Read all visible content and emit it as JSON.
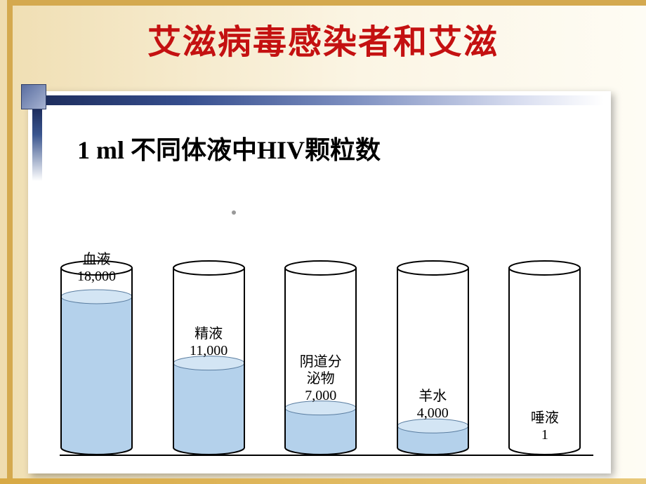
{
  "page_title": "艾滋病毒感染者和艾滋",
  "chart": {
    "title": "1 ml 不同体液中HIV颗粒数",
    "title_fontsize": 36,
    "title_fontweight": "bold",
    "title_color": "#000000",
    "background_color": "#ffffff",
    "accent_bar_gradient": [
      "#1e2e5e",
      "#364e8e",
      "#7d8fc0",
      "#d9def0",
      "#ffffff"
    ],
    "outer_gradient": [
      "#efdcaf",
      "#fdf8ec"
    ],
    "border_color": "#d4a94f",
    "main_title_color": "#c41111",
    "main_title_fontsize": 48,
    "tube_width": 105,
    "tube_spacing_pct": [
      0,
      21,
      42,
      63,
      84
    ],
    "tube_outline": "#000000",
    "tube_outline_width": 2,
    "liquid_fill": "#b4d1eb",
    "liquid_highlight": "#d3e5f4",
    "liquid_ellipse_stroke": "#5a7da0",
    "max_value": 18000,
    "tube_full_height": 280,
    "label_fontsize": 20,
    "items": [
      {
        "label_cn": "血液",
        "value_text": "18,000",
        "value": 18000,
        "fill_ratio": 0.84,
        "label_mode": "top"
      },
      {
        "label_cn": "精液",
        "value_text": "11,000",
        "value": 11000,
        "fill_ratio": 0.47,
        "label_mode": "above"
      },
      {
        "label_cn": "阴道分\n泌物",
        "value_text": "7,000",
        "value": 7000,
        "fill_ratio": 0.22,
        "label_mode": "above"
      },
      {
        "label_cn": "羊水",
        "value_text": "4,000",
        "value": 4000,
        "fill_ratio": 0.12,
        "label_mode": "above"
      },
      {
        "label_cn": "唾液",
        "value_text": "1",
        "value": 1,
        "fill_ratio": 0.0,
        "label_mode": "above"
      }
    ]
  }
}
